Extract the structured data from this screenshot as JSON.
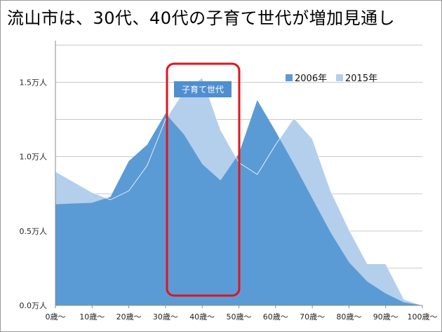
{
  "title": "流山市は、30代、40代の子育て世代が増加見通し",
  "chart_data": {
    "type": "area",
    "title": "流山市は、30代、40代の子育て世代が増加見通し",
    "xlabel": "",
    "ylabel": "",
    "x_tick_labels": [
      "0歳～",
      "10歳～",
      "20歳～",
      "30歳～",
      "40歳～",
      "50歳～",
      "60歳～",
      "70歳～",
      "80歳～",
      "90歳～",
      "100歳～"
    ],
    "y_tick_labels": [
      "0.0万人",
      "0.5万人",
      "1.0万人",
      "1.5万人"
    ],
    "y_tick_values": [
      0,
      0.5,
      1.0,
      1.5
    ],
    "ylim": [
      0,
      1.78
    ],
    "grid": true,
    "legend_position": "top-right",
    "x": [
      0,
      5,
      10,
      15,
      20,
      25,
      30,
      35,
      40,
      45,
      50,
      55,
      60,
      65,
      70,
      75,
      80,
      85,
      90,
      95,
      100
    ],
    "series": [
      {
        "name": "2006年",
        "color": "#5b9bd5",
        "values": [
          0.68,
          0.685,
          0.69,
          0.73,
          0.97,
          1.08,
          1.29,
          1.15,
          0.95,
          0.84,
          1.02,
          1.38,
          1.17,
          0.95,
          0.72,
          0.49,
          0.29,
          0.16,
          0.08,
          0.02,
          0.0
        ]
      },
      {
        "name": "2015年",
        "color": "#b4cfeb",
        "values": [
          0.9,
          0.83,
          0.76,
          0.71,
          0.77,
          0.94,
          1.25,
          1.44,
          1.53,
          1.18,
          0.96,
          0.88,
          1.08,
          1.26,
          1.12,
          0.77,
          0.51,
          0.28,
          0.28,
          0.04,
          0.0
        ]
      }
    ],
    "annotations": [
      {
        "text": "子育て世代",
        "x_range": [
          30,
          50
        ]
      }
    ]
  }
}
